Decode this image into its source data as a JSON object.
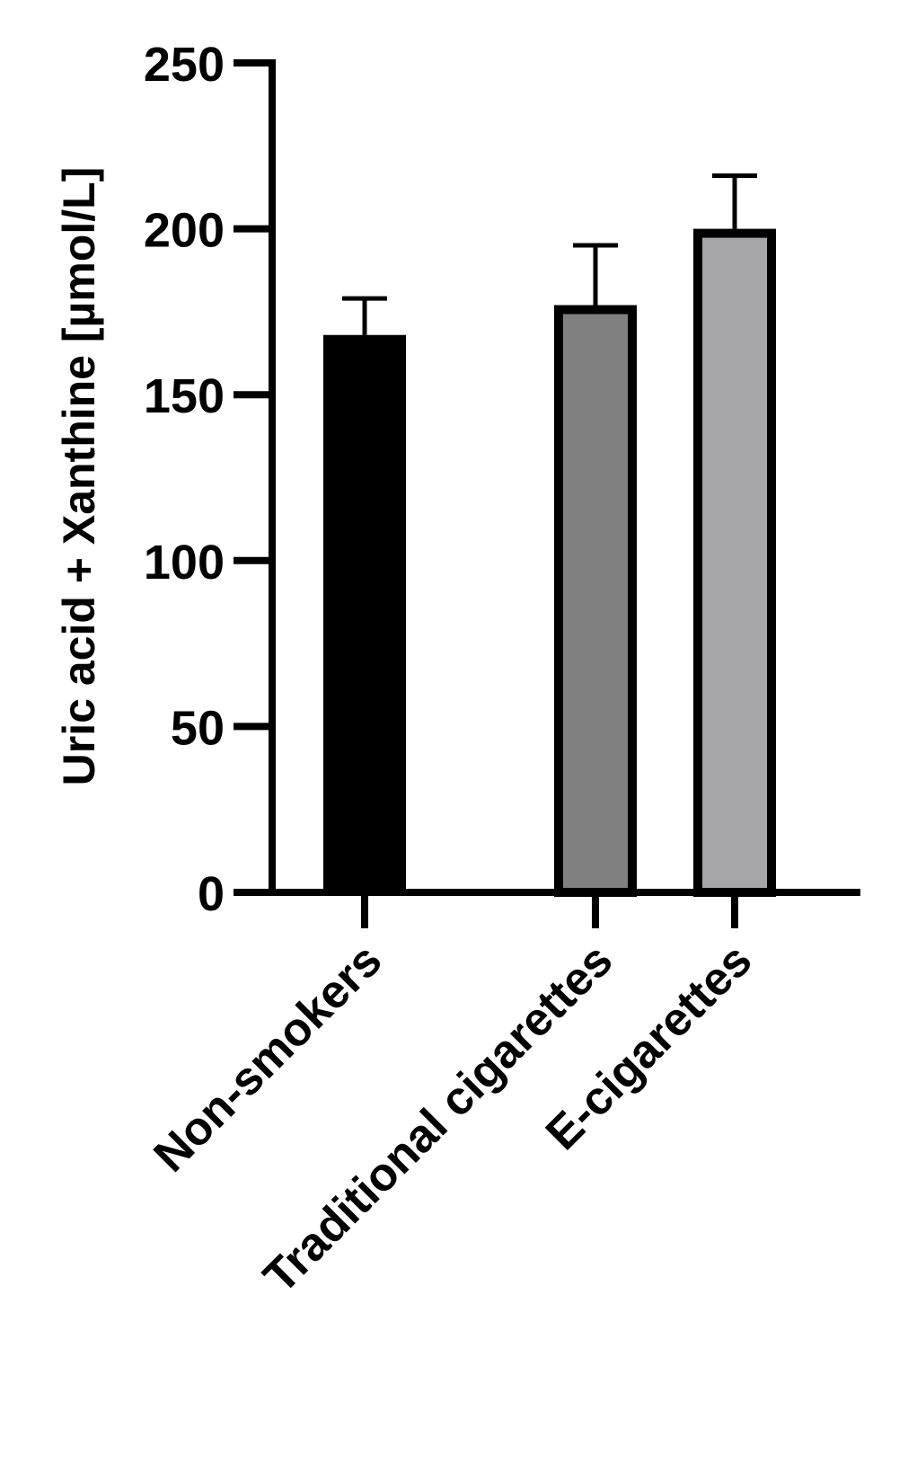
{
  "chart_data": {
    "type": "bar",
    "y_label": "Uric acid + Xanthine [µmol/L]",
    "categories": [
      "Non-smokers",
      "Traditional cigarettes",
      "E-cigarettes"
    ],
    "values": [
      168,
      177,
      200
    ],
    "errors": [
      11,
      18,
      16
    ],
    "colors": [
      "#000000",
      "#808080",
      "#a5a5aa"
    ],
    "ylim": [
      0,
      250
    ],
    "yticks": [
      0,
      50,
      100,
      150,
      200,
      250
    ]
  }
}
